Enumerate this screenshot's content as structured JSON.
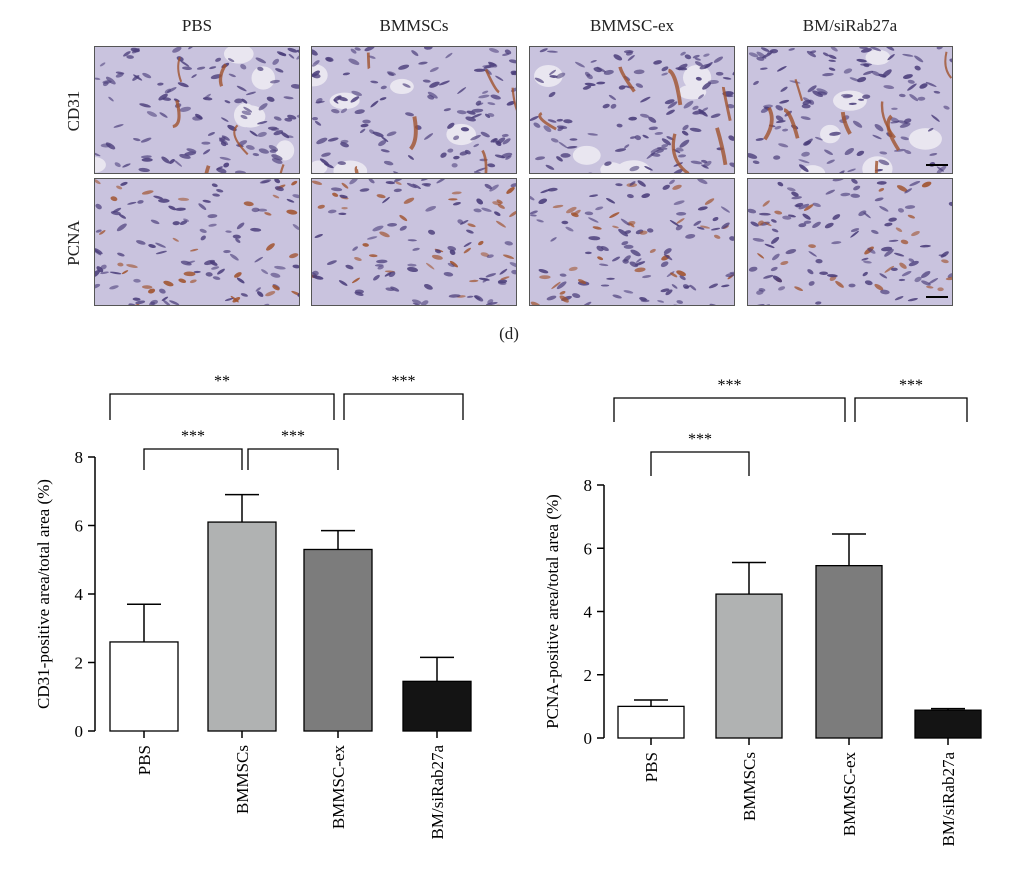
{
  "micrographs": {
    "columns": [
      "PBS",
      "BMMSCs",
      "BMMSC-ex",
      "BM/siRab27a"
    ],
    "rows": [
      "CD31",
      "PCNA"
    ],
    "panel_label": "(d)",
    "colors": {
      "background": "#c9c3de",
      "stroma": "#b6acd0",
      "brown_stain": "#a0522d",
      "nucleus": "#4a3d7a"
    }
  },
  "chart_data": [
    {
      "type": "bar",
      "title": "",
      "xlabel": "",
      "ylabel": "CD31-positive area/total area (%)",
      "categories": [
        "PBS",
        "BMMSCs",
        "BMMSC-ex",
        "BM/siRab27a"
      ],
      "values": [
        2.6,
        6.1,
        5.3,
        1.45
      ],
      "errors": [
        1.1,
        0.8,
        0.55,
        0.7
      ],
      "colors": [
        "#ffffff",
        "#b0b2b2",
        "#7c7c7c",
        "#141414"
      ],
      "ylim": [
        0,
        8
      ],
      "yticks": [
        "0",
        "2",
        "4",
        "6",
        "8"
      ],
      "significance": [
        {
          "from": 0,
          "to": 2,
          "label": "**",
          "level": 2
        },
        {
          "from": 2,
          "to": 3,
          "label": "***",
          "level": 2
        },
        {
          "from": 0,
          "to": 1,
          "label": "***",
          "level": 1
        },
        {
          "from": 1,
          "to": 2,
          "label": "***",
          "level": 1
        }
      ]
    },
    {
      "type": "bar",
      "title": "",
      "xlabel": "",
      "ylabel": "PCNA-positive area/total area (%)",
      "categories": [
        "PBS",
        "BMMSCs",
        "BMMSC-ex",
        "BM/siRab27a"
      ],
      "values": [
        1.0,
        4.55,
        5.45,
        0.88
      ],
      "errors": [
        0.2,
        1.0,
        1.0,
        0.05
      ],
      "colors": [
        "#ffffff",
        "#b0b2b2",
        "#7c7c7c",
        "#141414"
      ],
      "ylim": [
        0,
        8
      ],
      "yticks": [
        "0",
        "2",
        "4",
        "6",
        "8"
      ],
      "significance": [
        {
          "from": 0,
          "to": 2,
          "label": "***",
          "level": 2
        },
        {
          "from": 2,
          "to": 3,
          "label": "***",
          "level": 2
        },
        {
          "from": 0,
          "to": 1,
          "label": "***",
          "level": 1
        }
      ]
    }
  ]
}
